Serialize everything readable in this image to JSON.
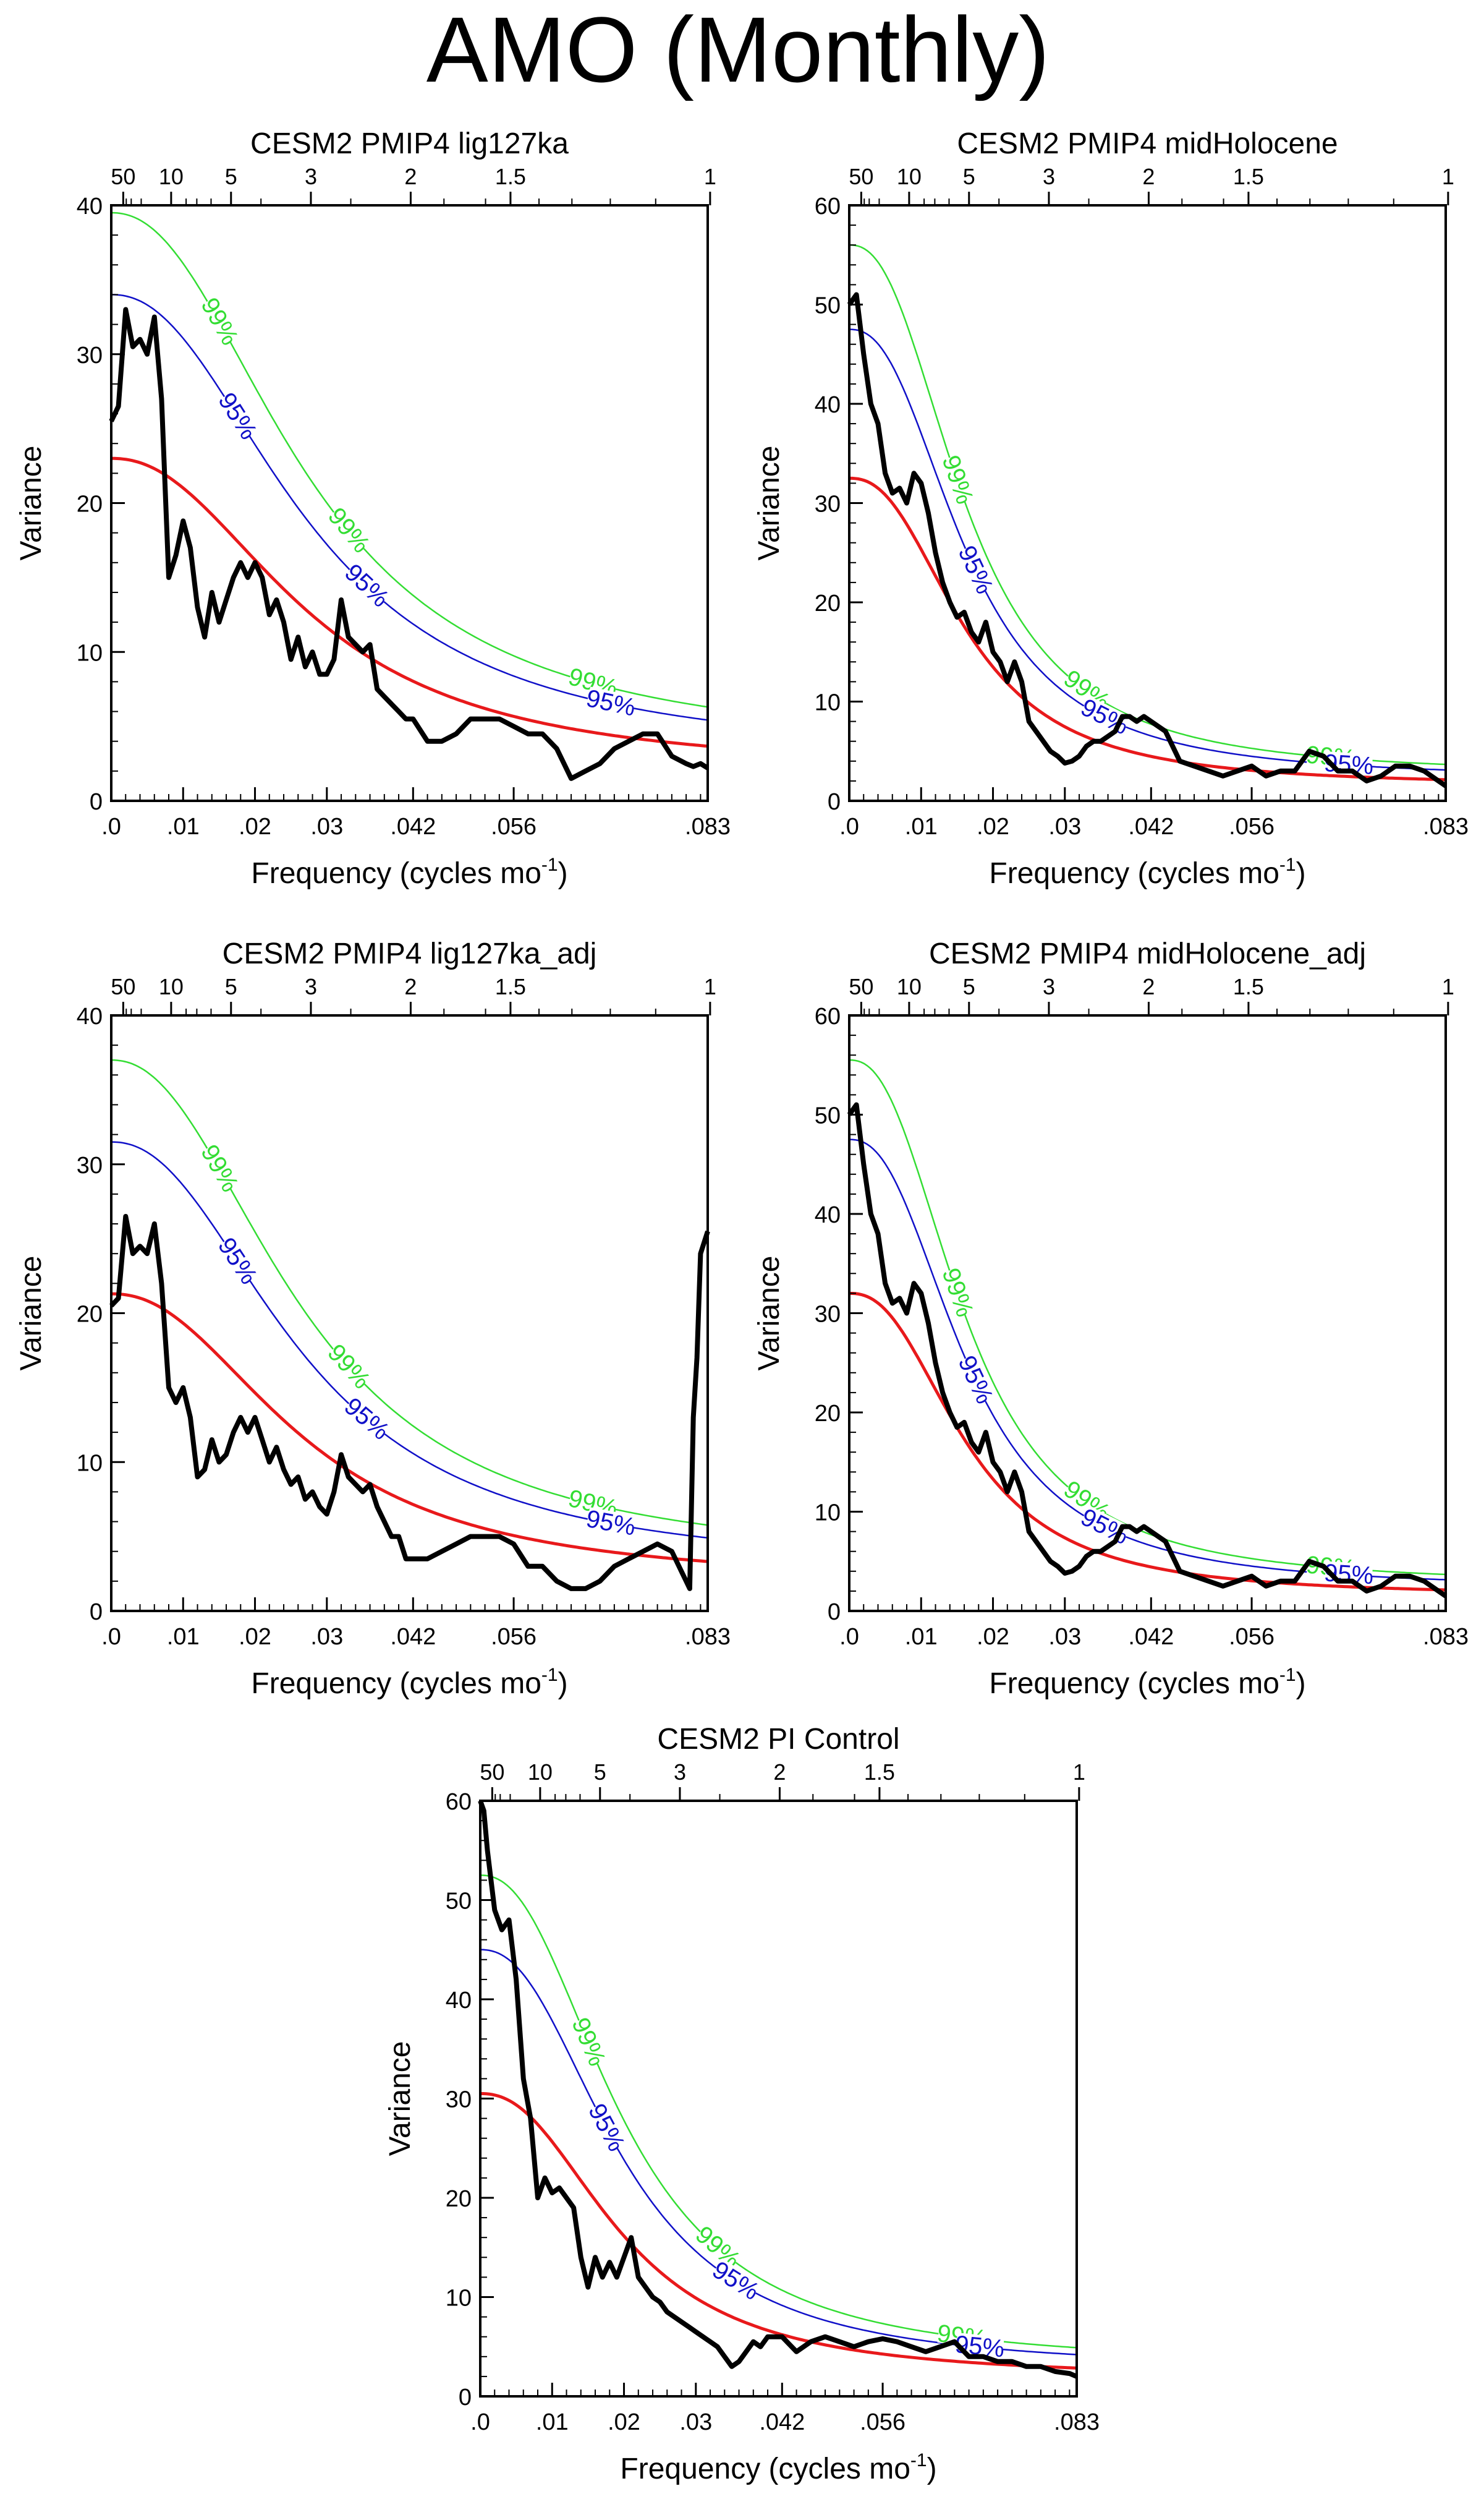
{
  "title": "AMO (Monthly)",
  "colors": {
    "spectrum": "#000000",
    "red_noise": "#e8191b",
    "ci95": "#1010c8",
    "ci99": "#33dd33"
  },
  "chart_data": [
    {
      "type": "line",
      "title": "CESM2 PMIP4 lig127ka",
      "xlabel": "Frequency (cycles mo",
      "xlabel_sup": "-1",
      "ylabel": "Variance",
      "xlim": [
        0,
        0.083
      ],
      "ylim": [
        0,
        40
      ],
      "yticks": [
        0,
        10,
        20,
        30,
        40
      ],
      "xticks": [
        [
          0,
          ".0"
        ],
        [
          0.01,
          ".01"
        ],
        [
          0.02,
          ".02"
        ],
        [
          0.03,
          ".03"
        ],
        [
          0.042,
          ".042"
        ],
        [
          0.056,
          ".056"
        ],
        [
          0.083,
          ".083"
        ]
      ],
      "top_ticks": [
        [
          50,
          "50"
        ],
        [
          10,
          "10"
        ],
        [
          5,
          "5"
        ],
        [
          3,
          "3"
        ],
        [
          2,
          "2"
        ],
        [
          1.5,
          "1.5"
        ],
        [
          1,
          "1"
        ]
      ],
      "red_noise": {
        "s0": 23,
        "f0": 0.028,
        "p": 2.2,
        "rinf": 1.9
      },
      "ci_labels": {
        "ci99": "99%",
        "ci95": "95%"
      },
      "series": [
        {
          "name": "spectrum",
          "x": [
            0,
            0.001,
            0.002,
            0.003,
            0.004,
            0.005,
            0.006,
            0.007,
            0.008,
            0.009,
            0.01,
            0.011,
            0.012,
            0.013,
            0.014,
            0.015,
            0.016,
            0.017,
            0.018,
            0.019,
            0.02,
            0.021,
            0.022,
            0.023,
            0.024,
            0.025,
            0.026,
            0.027,
            0.028,
            0.029,
            0.03,
            0.031,
            0.032,
            0.033,
            0.034,
            0.035,
            0.036,
            0.037,
            0.038,
            0.039,
            0.04,
            0.041,
            0.042,
            0.044,
            0.046,
            0.048,
            0.05,
            0.052,
            0.054,
            0.056,
            0.058,
            0.06,
            0.062,
            0.064,
            0.066,
            0.068,
            0.07,
            0.072,
            0.074,
            0.076,
            0.078,
            0.08,
            0.081,
            0.082,
            0.083
          ],
          "y": [
            25.5,
            26.5,
            33,
            30.5,
            31,
            30,
            32.5,
            27,
            15,
            16.5,
            18.8,
            17,
            13,
            11,
            14,
            12,
            13.5,
            15,
            16,
            15,
            16,
            15,
            12.5,
            13.5,
            12,
            9.5,
            11,
            9,
            10,
            8.5,
            8.5,
            9.5,
            13.5,
            11,
            10.5,
            10,
            10.5,
            7.5,
            7,
            6.5,
            6,
            5.5,
            5.5,
            4,
            4,
            4.5,
            5.5,
            5.5,
            5.5,
            5,
            4.5,
            4.5,
            3.5,
            1.5,
            2,
            2.5,
            3.5,
            4,
            4.5,
            4.5,
            3,
            2.5,
            2.3,
            2.5,
            2.2
          ]
        },
        {
          "name": "ci95",
          "s0": 34
        },
        {
          "name": "ci99",
          "s0": 39.5
        }
      ]
    },
    {
      "type": "line",
      "title": "CESM2 PMIP4 midHolocene",
      "xlabel": "Frequency (cycles mo",
      "xlabel_sup": "-1",
      "ylabel": "Variance",
      "xlim": [
        0,
        0.083
      ],
      "ylim": [
        0,
        60
      ],
      "yticks": [
        0,
        10,
        20,
        30,
        40,
        50,
        60
      ],
      "xticks": [
        [
          0,
          ".0"
        ],
        [
          0.01,
          ".01"
        ],
        [
          0.02,
          ".02"
        ],
        [
          0.03,
          ".03"
        ],
        [
          0.042,
          ".042"
        ],
        [
          0.056,
          ".056"
        ],
        [
          0.083,
          ".083"
        ]
      ],
      "top_ticks": [
        [
          50,
          "50"
        ],
        [
          10,
          "10"
        ],
        [
          5,
          "5"
        ],
        [
          3,
          "3"
        ],
        [
          2,
          "2"
        ],
        [
          1.5,
          "1.5"
        ],
        [
          1,
          "1"
        ]
      ],
      "red_noise": {
        "s0": 32.5,
        "f0": 0.0165,
        "p": 2.4,
        "rinf": 1.5
      },
      "ci_labels": {
        "ci99": "99%",
        "ci95": "95%"
      },
      "series": [
        {
          "name": "spectrum",
          "x": [
            0,
            0.001,
            0.002,
            0.003,
            0.004,
            0.005,
            0.006,
            0.007,
            0.008,
            0.009,
            0.01,
            0.011,
            0.012,
            0.013,
            0.014,
            0.015,
            0.016,
            0.017,
            0.018,
            0.019,
            0.02,
            0.021,
            0.022,
            0.023,
            0.024,
            0.025,
            0.026,
            0.027,
            0.028,
            0.029,
            0.03,
            0.031,
            0.032,
            0.033,
            0.034,
            0.035,
            0.036,
            0.037,
            0.038,
            0.039,
            0.04,
            0.041,
            0.042,
            0.043,
            0.044,
            0.046,
            0.048,
            0.05,
            0.052,
            0.054,
            0.056,
            0.058,
            0.06,
            0.062,
            0.064,
            0.066,
            0.068,
            0.07,
            0.072,
            0.074,
            0.076,
            0.078,
            0.08,
            0.082,
            0.083
          ],
          "y": [
            50,
            51,
            45,
            40,
            38,
            33,
            31,
            31.5,
            30,
            33,
            32,
            29,
            25,
            22,
            20,
            18.5,
            19,
            17,
            16,
            18,
            15,
            14,
            12,
            14,
            12,
            8,
            7,
            6,
            5,
            4.5,
            3.8,
            4,
            4.5,
            5.5,
            6,
            6,
            6.5,
            7,
            8.5,
            8.5,
            8,
            8.5,
            8,
            7.5,
            7,
            4,
            3.5,
            3,
            2.5,
            3,
            3.5,
            2.5,
            3,
            3,
            5,
            4.5,
            3,
            3,
            2,
            2.5,
            3.5,
            3.5,
            3,
            2,
            1.5
          ]
        },
        {
          "name": "ci95",
          "s0": 47.5
        },
        {
          "name": "ci99",
          "s0": 56
        }
      ]
    },
    {
      "type": "line",
      "title": "CESM2 PMIP4 lig127ka_adj",
      "xlabel": "Frequency (cycles mo",
      "xlabel_sup": "-1",
      "ylabel": "Variance",
      "xlim": [
        0,
        0.083
      ],
      "ylim": [
        0,
        40
      ],
      "yticks": [
        0,
        10,
        20,
        30,
        40
      ],
      "xticks": [
        [
          0,
          ".0"
        ],
        [
          0.01,
          ".01"
        ],
        [
          0.02,
          ".02"
        ],
        [
          0.03,
          ".03"
        ],
        [
          0.042,
          ".042"
        ],
        [
          0.056,
          ".056"
        ],
        [
          0.083,
          ".083"
        ]
      ],
      "top_ticks": [
        [
          50,
          "50"
        ],
        [
          10,
          "10"
        ],
        [
          5,
          "5"
        ],
        [
          3,
          "3"
        ],
        [
          2,
          "2"
        ],
        [
          1.5,
          "1.5"
        ],
        [
          1,
          "1"
        ]
      ],
      "red_noise": {
        "s0": 21.3,
        "f0": 0.027,
        "p": 2.2,
        "rinf": 1.8
      },
      "ci_labels": {
        "ci99": "99%",
        "ci95": "95%"
      },
      "series": [
        {
          "name": "spectrum",
          "x": [
            0,
            0.001,
            0.002,
            0.003,
            0.004,
            0.005,
            0.006,
            0.007,
            0.008,
            0.009,
            0.01,
            0.011,
            0.012,
            0.013,
            0.014,
            0.015,
            0.016,
            0.017,
            0.018,
            0.019,
            0.02,
            0.021,
            0.022,
            0.023,
            0.024,
            0.025,
            0.026,
            0.027,
            0.028,
            0.029,
            0.03,
            0.031,
            0.032,
            0.033,
            0.034,
            0.035,
            0.036,
            0.037,
            0.038,
            0.039,
            0.04,
            0.041,
            0.042,
            0.044,
            0.046,
            0.048,
            0.05,
            0.052,
            0.054,
            0.056,
            0.058,
            0.06,
            0.062,
            0.064,
            0.066,
            0.068,
            0.07,
            0.072,
            0.074,
            0.076,
            0.078,
            0.079,
            0.08,
            0.0805,
            0.081,
            0.0815,
            0.082,
            0.083
          ],
          "y": [
            20.5,
            21,
            26.5,
            24,
            24.5,
            24,
            26,
            22,
            15,
            14,
            15,
            13,
            9,
            9.5,
            11.5,
            10,
            10.5,
            12,
            13,
            12,
            13,
            11.5,
            10,
            11,
            9.5,
            8.5,
            9,
            7.5,
            8,
            7,
            6.5,
            8,
            10.5,
            9,
            8.5,
            8,
            8.5,
            7,
            6,
            5,
            5,
            3.5,
            3.5,
            3.5,
            4,
            4.5,
            5,
            5,
            5,
            4.5,
            3,
            3,
            2,
            1.5,
            1.5,
            2,
            3,
            3.5,
            4,
            4.5,
            4,
            3,
            2,
            1.5,
            13,
            17,
            24,
            25.5
          ]
        },
        {
          "name": "ci95",
          "s0": 31.5
        },
        {
          "name": "ci99",
          "s0": 37
        }
      ]
    },
    {
      "type": "line",
      "title": "CESM2 PMIP4 midHolocene_adj",
      "xlabel": "Frequency (cycles mo",
      "xlabel_sup": "-1",
      "ylabel": "Variance",
      "xlim": [
        0,
        0.083
      ],
      "ylim": [
        0,
        60
      ],
      "yticks": [
        0,
        10,
        20,
        30,
        40,
        50,
        60
      ],
      "xticks": [
        [
          0,
          ".0"
        ],
        [
          0.01,
          ".01"
        ],
        [
          0.02,
          ".02"
        ],
        [
          0.03,
          ".03"
        ],
        [
          0.042,
          ".042"
        ],
        [
          0.056,
          ".056"
        ],
        [
          0.083,
          ".083"
        ]
      ],
      "top_ticks": [
        [
          50,
          "50"
        ],
        [
          10,
          "10"
        ],
        [
          5,
          "5"
        ],
        [
          3,
          "3"
        ],
        [
          2,
          "2"
        ],
        [
          1.5,
          "1.5"
        ],
        [
          1,
          "1"
        ]
      ],
      "red_noise": {
        "s0": 32,
        "f0": 0.0165,
        "p": 2.4,
        "rinf": 1.5
      },
      "ci_labels": {
        "ci99": "99%",
        "ci95": "95%"
      },
      "series": [
        {
          "name": "spectrum",
          "x": [
            0,
            0.001,
            0.002,
            0.003,
            0.004,
            0.005,
            0.006,
            0.007,
            0.008,
            0.009,
            0.01,
            0.011,
            0.012,
            0.013,
            0.014,
            0.015,
            0.016,
            0.017,
            0.018,
            0.019,
            0.02,
            0.021,
            0.022,
            0.023,
            0.024,
            0.025,
            0.026,
            0.027,
            0.028,
            0.029,
            0.03,
            0.031,
            0.032,
            0.033,
            0.034,
            0.035,
            0.036,
            0.037,
            0.038,
            0.039,
            0.04,
            0.041,
            0.042,
            0.043,
            0.044,
            0.046,
            0.048,
            0.05,
            0.052,
            0.054,
            0.056,
            0.058,
            0.06,
            0.062,
            0.064,
            0.066,
            0.068,
            0.07,
            0.072,
            0.074,
            0.076,
            0.078,
            0.08,
            0.082,
            0.083
          ],
          "y": [
            50,
            51,
            45,
            40,
            38,
            33,
            31,
            31.5,
            30,
            33,
            32,
            29,
            25,
            22,
            20,
            18.5,
            19,
            17,
            16,
            18,
            15,
            14,
            12,
            14,
            12,
            8,
            7,
            6,
            5,
            4.5,
            3.8,
            4,
            4.5,
            5.5,
            6,
            6,
            6.5,
            7,
            8.5,
            8.5,
            8,
            8.5,
            8,
            7.5,
            7,
            4,
            3.5,
            3,
            2.5,
            3,
            3.5,
            2.5,
            3,
            3,
            5,
            4.5,
            3,
            3,
            2,
            2.5,
            3.5,
            3.5,
            3,
            2,
            1.5
          ]
        },
        {
          "name": "ci95",
          "s0": 47.5
        },
        {
          "name": "ci99",
          "s0": 55.5
        }
      ]
    },
    {
      "type": "line",
      "title": "CESM2 PI Control",
      "xlabel": "Frequency (cycles mo",
      "xlabel_sup": "-1",
      "ylabel": "Variance",
      "xlim": [
        0,
        0.083
      ],
      "ylim": [
        0,
        60
      ],
      "yticks": [
        0,
        10,
        20,
        30,
        40,
        50,
        60
      ],
      "xticks": [
        [
          0,
          ".0"
        ],
        [
          0.01,
          ".01"
        ],
        [
          0.02,
          ".02"
        ],
        [
          0.03,
          ".03"
        ],
        [
          0.042,
          ".042"
        ],
        [
          0.056,
          ".056"
        ],
        [
          0.083,
          ".083"
        ]
      ],
      "top_ticks": [
        [
          50,
          "50"
        ],
        [
          10,
          "10"
        ],
        [
          5,
          "5"
        ],
        [
          3,
          "3"
        ],
        [
          2,
          "2"
        ],
        [
          1.5,
          "1.5"
        ],
        [
          1,
          "1"
        ]
      ],
      "red_noise": {
        "s0": 30.5,
        "f0": 0.02,
        "p": 2.3,
        "rinf": 1.8
      },
      "ci_labels": {
        "ci99": "99%",
        "ci95": "95%"
      },
      "series": [
        {
          "name": "spectrum",
          "x": [
            0,
            0.0005,
            0.001,
            0.0015,
            0.002,
            0.003,
            0.004,
            0.005,
            0.006,
            0.007,
            0.008,
            0.009,
            0.01,
            0.011,
            0.012,
            0.013,
            0.014,
            0.015,
            0.016,
            0.017,
            0.018,
            0.019,
            0.02,
            0.021,
            0.022,
            0.023,
            0.024,
            0.025,
            0.026,
            0.027,
            0.028,
            0.029,
            0.03,
            0.031,
            0.032,
            0.033,
            0.034,
            0.035,
            0.036,
            0.037,
            0.038,
            0.039,
            0.04,
            0.041,
            0.042,
            0.044,
            0.046,
            0.048,
            0.05,
            0.052,
            0.054,
            0.056,
            0.058,
            0.06,
            0.062,
            0.064,
            0.066,
            0.068,
            0.07,
            0.072,
            0.074,
            0.076,
            0.078,
            0.08,
            0.082,
            0.083
          ],
          "y": [
            60,
            59,
            55,
            52,
            49,
            47,
            48,
            42,
            32,
            28,
            20,
            22,
            20.5,
            21,
            20,
            19,
            14,
            11,
            14,
            12,
            13.5,
            12,
            14,
            16,
            12,
            11,
            10,
            9.5,
            8.5,
            8,
            7.5,
            7,
            6.5,
            6,
            5.5,
            5,
            4,
            3,
            3.5,
            4.5,
            5.5,
            5,
            6,
            6,
            6,
            4.5,
            5.5,
            6,
            5.5,
            5,
            5.5,
            5.8,
            5.5,
            5,
            4.5,
            5,
            5.5,
            4,
            4,
            3.5,
            3.5,
            3,
            3,
            2.5,
            2.3,
            2
          ]
        },
        {
          "name": "ci95",
          "s0": 45
        },
        {
          "name": "ci99",
          "s0": 52.5
        }
      ]
    }
  ]
}
